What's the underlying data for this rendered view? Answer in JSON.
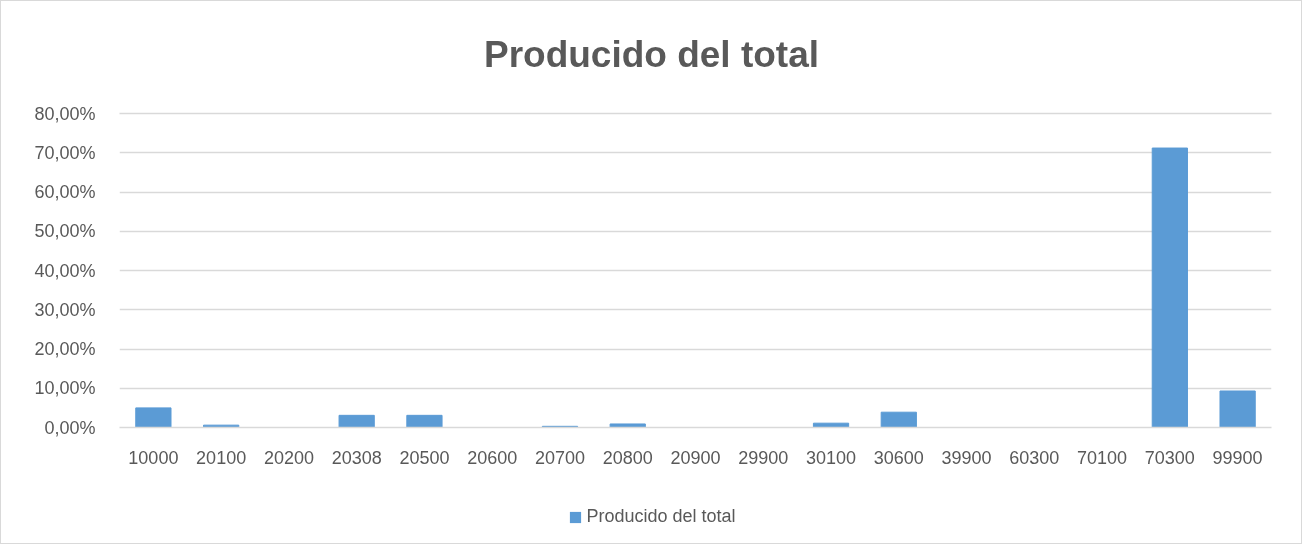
{
  "chart_data": {
    "type": "bar",
    "title": "Producido del total",
    "categories": [
      "10000",
      "20100",
      "20200",
      "20308",
      "20500",
      "20600",
      "20700",
      "20800",
      "20900",
      "29900",
      "30100",
      "30600",
      "39900",
      "60300",
      "70100",
      "70300",
      "99900"
    ],
    "series": [
      {
        "name": "Producido del total",
        "color": "#5b9bd5",
        "values": [
          5.0,
          0.6,
          0,
          3.1,
          3.1,
          0,
          0.3,
          0.9,
          0,
          0,
          1.1,
          3.9,
          0,
          0,
          0,
          71.2,
          9.3
        ]
      }
    ],
    "ylim": [
      0,
      80
    ],
    "yticks": [
      {
        "value": 0,
        "label": "0,00%"
      },
      {
        "value": 10,
        "label": "10,00%"
      },
      {
        "value": 20,
        "label": "20,00%"
      },
      {
        "value": 30,
        "label": "30,00%"
      },
      {
        "value": 40,
        "label": "40,00%"
      },
      {
        "value": 50,
        "label": "50,00%"
      },
      {
        "value": 60,
        "label": "60,00%"
      },
      {
        "value": 70,
        "label": "70,00%"
      },
      {
        "value": 80,
        "label": "80,00%"
      }
    ],
    "grid": "y",
    "legend": "bottom"
  }
}
